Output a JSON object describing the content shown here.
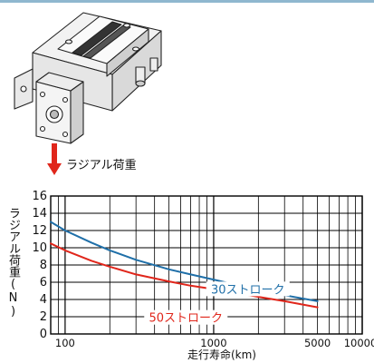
{
  "page": {
    "arrow_label": "ラジアル荷重"
  },
  "colors": {
    "header_rule": "#8fb7cf",
    "arrow": "#e0261b",
    "stroke_30": "#1f6fa8",
    "stroke_50": "#e0261b"
  },
  "icons": {
    "illustration": "linear-slide-actuator-illustration",
    "arrow": "down-arrow-icon"
  },
  "chart_data": {
    "type": "line",
    "title": "",
    "xlabel": "走行寿命(km)",
    "ylabel": "ラジアル荷重(N)",
    "x_scale": "log",
    "xlim": [
      80,
      10000
    ],
    "ylim": [
      0,
      16
    ],
    "grid": true,
    "x_ticks": [
      {
        "value": 100,
        "label": "100"
      },
      {
        "value": 1000,
        "label": "1000"
      },
      {
        "value": 5000,
        "label": "5000"
      },
      {
        "value": 10000,
        "label": "10000"
      }
    ],
    "y_ticks": [
      0,
      2,
      4,
      6,
      8,
      10,
      12,
      14,
      16
    ],
    "series": [
      {
        "name": "30ストローク",
        "color": "#1f6fa8",
        "x": [
          80,
          100,
          150,
          200,
          300,
          500,
          700,
          1000,
          1500,
          2000,
          3000,
          5000
        ],
        "y": [
          13.0,
          12.0,
          10.6,
          9.7,
          8.6,
          7.5,
          6.9,
          6.3,
          5.6,
          5.1,
          4.5,
          3.8
        ]
      },
      {
        "name": "50ストローク",
        "color": "#e0261b",
        "x": [
          80,
          100,
          150,
          200,
          300,
          500,
          700,
          1000,
          1500,
          2000,
          3000,
          5000
        ],
        "y": [
          10.5,
          9.7,
          8.5,
          7.8,
          6.9,
          6.1,
          5.6,
          5.2,
          4.7,
          4.3,
          3.8,
          3.1
        ]
      }
    ]
  }
}
